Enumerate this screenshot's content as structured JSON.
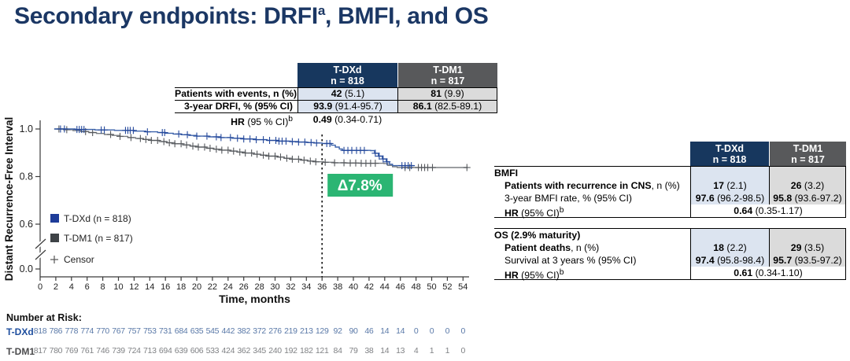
{
  "colors": {
    "title_navy": "#1B3764",
    "header_navy": "#17375E",
    "header_gray": "#58595B",
    "col_light_blue": "#DCE4F0",
    "col_light_gray": "#DBDBDB",
    "delta_green": "#2BB573",
    "tdxd_curve": "#3D63AB",
    "tdxd_censor": "#24489B",
    "tdxd_legend": "#1E3C99",
    "tdm1_curve": "#7A7E82",
    "tdm1_censor": "#55585C",
    "tdm1_legend": "#3E4347",
    "tdxd_risk_num": "#5A79A8",
    "tdm1_risk_num": "#808285",
    "tdxd_risk_label": "#1E4E9E",
    "tdm1_risk_label": "#4A4A4C"
  },
  "title": {
    "main": "Secondary endpoints: DRFI",
    "sup": "a",
    "rest": ", BMFI, and OS"
  },
  "drfi_table": {
    "col_headers": [
      {
        "drug": "T-DXd",
        "n": "n = 818"
      },
      {
        "drug": "T-DM1",
        "n": "n = 817"
      }
    ],
    "rows": [
      {
        "label": "Patients with events, n (%)",
        "cells": [
          {
            "b": "42",
            "r": " (5.1)"
          },
          {
            "b": "81",
            "r": " (9.9)"
          }
        ]
      },
      {
        "label": "3-year DRFI, % (95% CI)",
        "cells": [
          {
            "b": "93.9",
            "r": " (91.4-95.7)"
          },
          {
            "b": "86.1",
            "r": " (82.5-89.1)"
          }
        ]
      }
    ],
    "hr": {
      "label_bold": "HR",
      "label_rest": " (95 % CI)",
      "sup": "b",
      "value_b": "0.49",
      "value_r": " (0.34-0.71)"
    }
  },
  "right_tables": {
    "col_headers": [
      {
        "drug": "T-DXd",
        "n": "n = 818"
      },
      {
        "drug": "T-DM1",
        "n": "n = 817"
      }
    ],
    "sections": [
      {
        "title": "BMFI",
        "rows": [
          {
            "label_bold": "Patients with recurrence in CNS",
            "label_rest": ", n (%)",
            "cells": [
              {
                "b": "17",
                "r": " (2.1)"
              },
              {
                "b": "26",
                "r": " (3.2)"
              }
            ]
          },
          {
            "label_bold": "",
            "label_rest": "3-year BMFI rate, % (95% CI)",
            "cells": [
              {
                "b": "97.6",
                "r": " (96.2-98.5)"
              },
              {
                "b": "95.8",
                "r": " (93.6-97.2)"
              }
            ]
          }
        ],
        "hr": {
          "label_bold": "HR",
          "label_rest": " (95% CI)",
          "sup": "b",
          "value_b": "0.64",
          "value_r": " (0.35-1.17)"
        }
      },
      {
        "title": "OS (2.9% maturity)",
        "rows": [
          {
            "label_bold": "Patient deaths",
            "label_rest": ", n (%)",
            "cells": [
              {
                "b": "18",
                "r": " (2.2)"
              },
              {
                "b": "29",
                "r": " (3.5)"
              }
            ]
          },
          {
            "label_bold": "",
            "label_rest": "Survival at 3 years % (95% CI)",
            "cells": [
              {
                "b": "97.4",
                "r": " (95.8-98.4)"
              },
              {
                "b": "95.7",
                "r": " (93.5-97.2)"
              }
            ]
          }
        ],
        "hr": {
          "label_bold": "HR",
          "label_rest": " (95% CI)",
          "sup": "b",
          "value_b": "0.61",
          "value_r": " (0.34-1.10)"
        }
      }
    ]
  },
  "chart_data": {
    "type": "line",
    "subtype": "kaplan-meier-step",
    "xlabel": "Time, months",
    "ylabel": "Distant Recurrence-Free Interval",
    "xlim": [
      0,
      55
    ],
    "x_tick_start": 0,
    "x_tick_end": 54,
    "x_tick_step": 2,
    "y_ticks": [
      1.0,
      0.8,
      0.6,
      0.0
    ],
    "y_axis_break_between": [
      0.6,
      0.0
    ],
    "grid": "off",
    "legend_position": "inside-lower-left",
    "reference_line_x": 36,
    "annotation": {
      "text": "Δ7.8%",
      "at_month": 36
    },
    "censor_label": "Censor",
    "series": [
      {
        "name": "T-DXd (n = 818)",
        "steps": [
          [
            1.8,
            1.0
          ],
          [
            4.5,
            0.998
          ],
          [
            7,
            0.996
          ],
          [
            9.5,
            0.994
          ],
          [
            12,
            0.991
          ],
          [
            13.5,
            0.988
          ],
          [
            15,
            0.985
          ],
          [
            16,
            0.982
          ],
          [
            17,
            0.979
          ],
          [
            18,
            0.976
          ],
          [
            19,
            0.973
          ],
          [
            20,
            0.97
          ],
          [
            21.5,
            0.967
          ],
          [
            23,
            0.964
          ],
          [
            24.5,
            0.961
          ],
          [
            26,
            0.958
          ],
          [
            27.5,
            0.955
          ],
          [
            29,
            0.952
          ],
          [
            30.5,
            0.949
          ],
          [
            32,
            0.947
          ],
          [
            33,
            0.945
          ],
          [
            34,
            0.943
          ],
          [
            35,
            0.941
          ],
          [
            36,
            0.939
          ],
          [
            37.2,
            0.932
          ],
          [
            37.7,
            0.924
          ],
          [
            38.2,
            0.916
          ],
          [
            38.6,
            0.91
          ],
          [
            42.2,
            0.909
          ],
          [
            42.7,
            0.898
          ],
          [
            43.2,
            0.886
          ],
          [
            43.7,
            0.874
          ],
          [
            44.2,
            0.862
          ],
          [
            44.6,
            0.852
          ],
          [
            45,
            0.846
          ],
          [
            47.8,
            0.846
          ]
        ],
        "censors": [
          2.6,
          3.1,
          4.7,
          5.0,
          5.3,
          5.6,
          7.8,
          8.2,
          10.9,
          11.2,
          11.5,
          11.9,
          13.7,
          15.6,
          15.9,
          17.7,
          18.8,
          20.0,
          21.3,
          22.5,
          23.1,
          24.3,
          25.2,
          26.0,
          26.8,
          27.6,
          28.5,
          29.3,
          30.1,
          30.5,
          30.9,
          31.4,
          32.2,
          33.0,
          33.8,
          34.6,
          35.3,
          36.6,
          37.0,
          38.8,
          39.3,
          39.8,
          40.4,
          40.9,
          41.4,
          42.8,
          43.3,
          43.8,
          44.3,
          46.2,
          46.6,
          47.0,
          47.4
        ]
      },
      {
        "name": "T-DM1 (n = 817)",
        "steps": [
          [
            1.8,
            1.0
          ],
          [
            3,
            0.997
          ],
          [
            4.2,
            0.993
          ],
          [
            5.2,
            0.989
          ],
          [
            6.2,
            0.985
          ],
          [
            7.2,
            0.981
          ],
          [
            8.2,
            0.977
          ],
          [
            9.2,
            0.973
          ],
          [
            10.2,
            0.969
          ],
          [
            11.2,
            0.964
          ],
          [
            12.2,
            0.96
          ],
          [
            13.2,
            0.956
          ],
          [
            14.2,
            0.952
          ],
          [
            15.2,
            0.947
          ],
          [
            16.2,
            0.942
          ],
          [
            17.2,
            0.938
          ],
          [
            18.2,
            0.933
          ],
          [
            19.2,
            0.928
          ],
          [
            20.2,
            0.924
          ],
          [
            21.2,
            0.919
          ],
          [
            22.2,
            0.915
          ],
          [
            23.2,
            0.911
          ],
          [
            24.2,
            0.907
          ],
          [
            25.2,
            0.903
          ],
          [
            26.2,
            0.899
          ],
          [
            27.2,
            0.894
          ],
          [
            28.2,
            0.89
          ],
          [
            29.2,
            0.886
          ],
          [
            30.2,
            0.882
          ],
          [
            31.2,
            0.877
          ],
          [
            32.2,
            0.873
          ],
          [
            33.2,
            0.869
          ],
          [
            34.2,
            0.865
          ],
          [
            35.2,
            0.862
          ],
          [
            36.2,
            0.86
          ],
          [
            37.5,
            0.858
          ],
          [
            39,
            0.857
          ],
          [
            41,
            0.856
          ],
          [
            43.9,
            0.855
          ],
          [
            44.4,
            0.847
          ],
          [
            45,
            0.841
          ],
          [
            45.6,
            0.838
          ],
          [
            54.6,
            0.838
          ]
        ],
        "censors": [
          2.4,
          3.4,
          5.8,
          6.7,
          9.0,
          10.2,
          11.6,
          12.8,
          13.5,
          14.2,
          15.0,
          15.8,
          16.5,
          17.2,
          18.0,
          18.7,
          19.5,
          20.2,
          21.0,
          21.7,
          22.5,
          23.2,
          24.0,
          24.7,
          25.5,
          26.2,
          27.0,
          27.7,
          28.5,
          29.2,
          30.0,
          30.7,
          31.5,
          32.2,
          33.0,
          33.7,
          34.5,
          35.2,
          36.4,
          37.6,
          38.8,
          39.6,
          40.3,
          41.0,
          41.6,
          42.2,
          42.8,
          46.6,
          47.2,
          48.3,
          48.7,
          49.1,
          49.5,
          50.1,
          54.5
        ]
      }
    ],
    "at_risk": {
      "title": "Number at Risk:",
      "months": [
        0,
        2,
        4,
        6,
        8,
        10,
        12,
        14,
        16,
        18,
        20,
        22,
        24,
        26,
        28,
        30,
        32,
        34,
        36,
        38,
        40,
        42,
        44,
        46,
        48,
        50,
        52,
        54
      ],
      "rows": [
        {
          "label": "T-DXd",
          "values": [
            818,
            786,
            778,
            774,
            770,
            767,
            757,
            753,
            731,
            684,
            635,
            545,
            442,
            382,
            372,
            276,
            219,
            213,
            129,
            92,
            90,
            46,
            14,
            14,
            0,
            0,
            0,
            0
          ]
        },
        {
          "label": "T-DM1",
          "values": [
            817,
            780,
            769,
            761,
            746,
            739,
            724,
            713,
            694,
            639,
            606,
            533,
            424,
            362,
            345,
            240,
            192,
            182,
            121,
            84,
            79,
            38,
            14,
            13,
            4,
            1,
            1,
            0
          ]
        }
      ]
    }
  }
}
